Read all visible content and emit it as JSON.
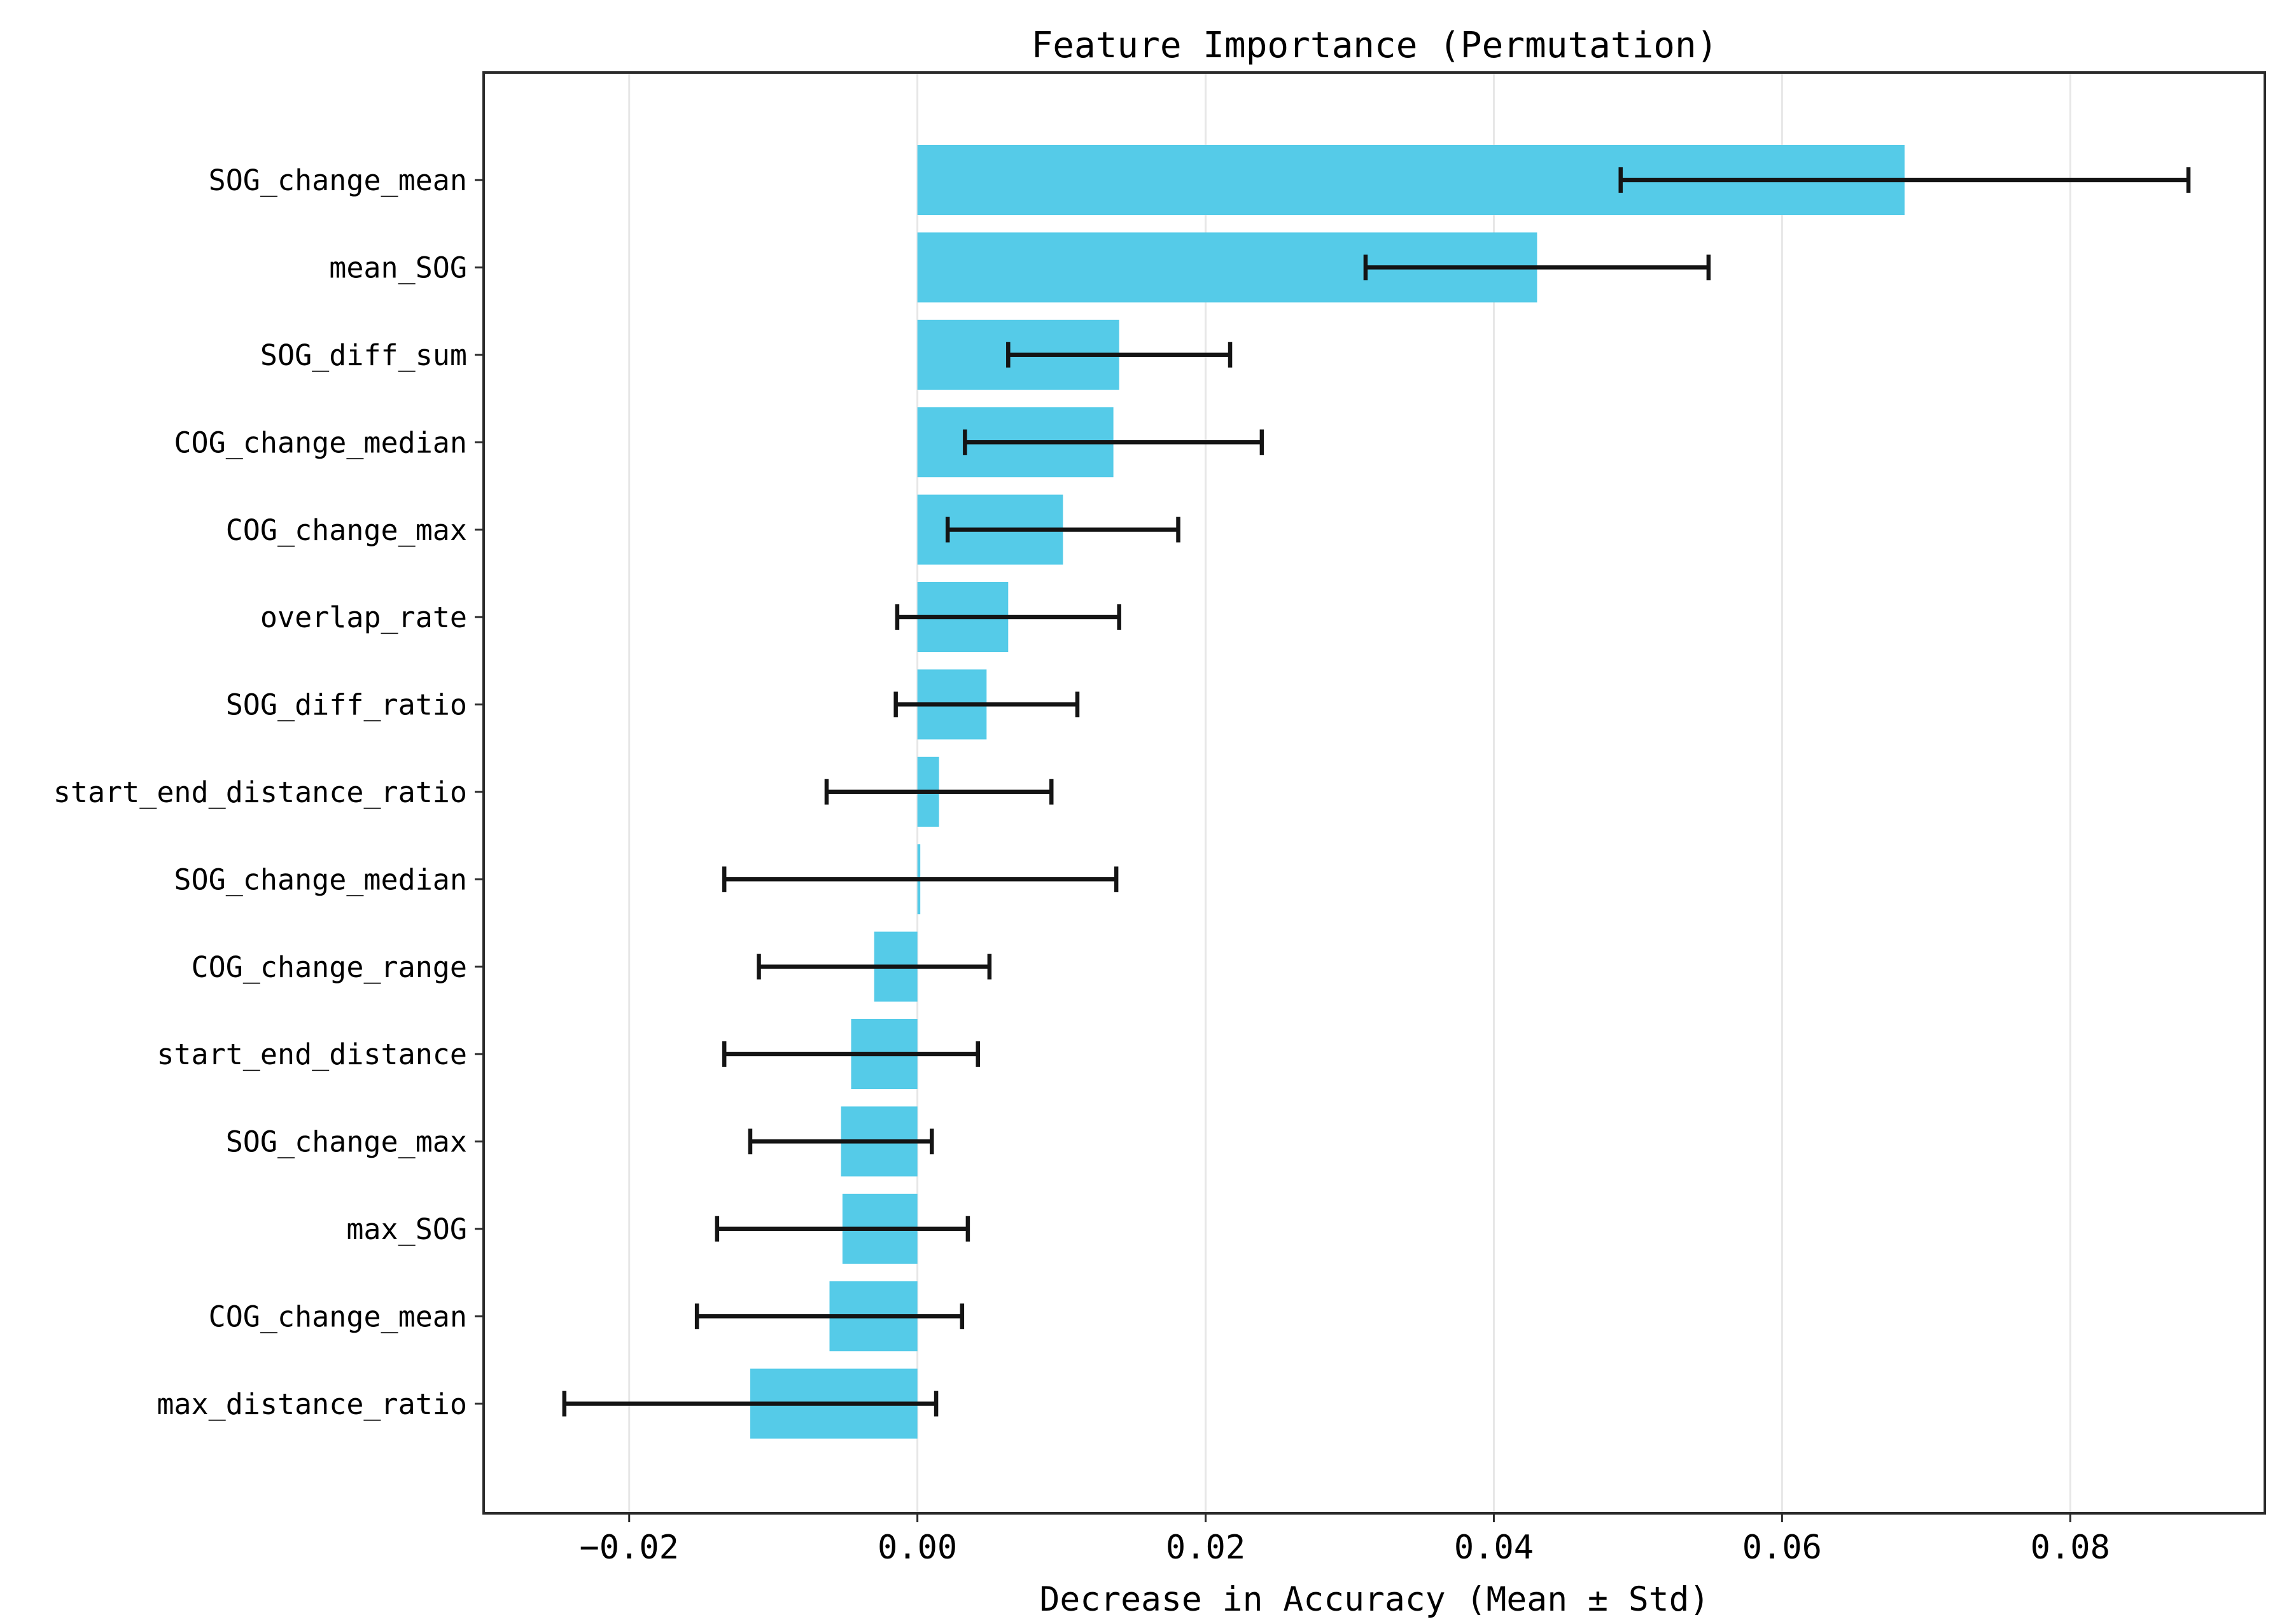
{
  "chart_data": {
    "type": "bar",
    "orientation": "horizontal",
    "title": "Feature Importance (Permutation)",
    "xlabel": "Decrease in Accuracy (Mean ± Std)",
    "ylabel": "",
    "legend": "none",
    "grid": "vertical-only",
    "error_bars": true,
    "categories": [
      "SOG_change_mean",
      "mean_SOG",
      "SOG_diff_sum",
      "COG_change_median",
      "COG_change_max",
      "overlap_rate",
      "SOG_diff_ratio",
      "start_end_distance_ratio",
      "SOG_change_median",
      "COG_change_range",
      "start_end_distance",
      "SOG_change_max",
      "max_SOG",
      "COG_change_mean",
      "max_distance_ratio"
    ],
    "values": [
      0.0685,
      0.043,
      0.014,
      0.0136,
      0.0101,
      0.0063,
      0.0048,
      0.0015,
      0.0002,
      -0.003,
      -0.0046,
      -0.0053,
      -0.0052,
      -0.0061,
      -0.0116
    ],
    "errors": [
      0.0197,
      0.0119,
      0.0077,
      0.0103,
      0.008,
      0.0077,
      0.0063,
      0.0078,
      0.0136,
      0.008,
      0.0088,
      0.0063,
      0.0087,
      0.0092,
      0.0129
    ],
    "xlim": [
      -0.0301,
      0.0935
    ],
    "xticks": [
      -0.02,
      0.0,
      0.02,
      0.04,
      0.06,
      0.08
    ],
    "xtick_labels": [
      "−0.02",
      "0.00",
      "0.02",
      "0.04",
      "0.06",
      "0.08"
    ]
  },
  "colors": {
    "bar": "#55cbe8",
    "error_bar": "#141414",
    "gridline": "#e7e7e7",
    "spine": "#2a2a2a",
    "text": "#000000",
    "background": "#ffffff"
  }
}
